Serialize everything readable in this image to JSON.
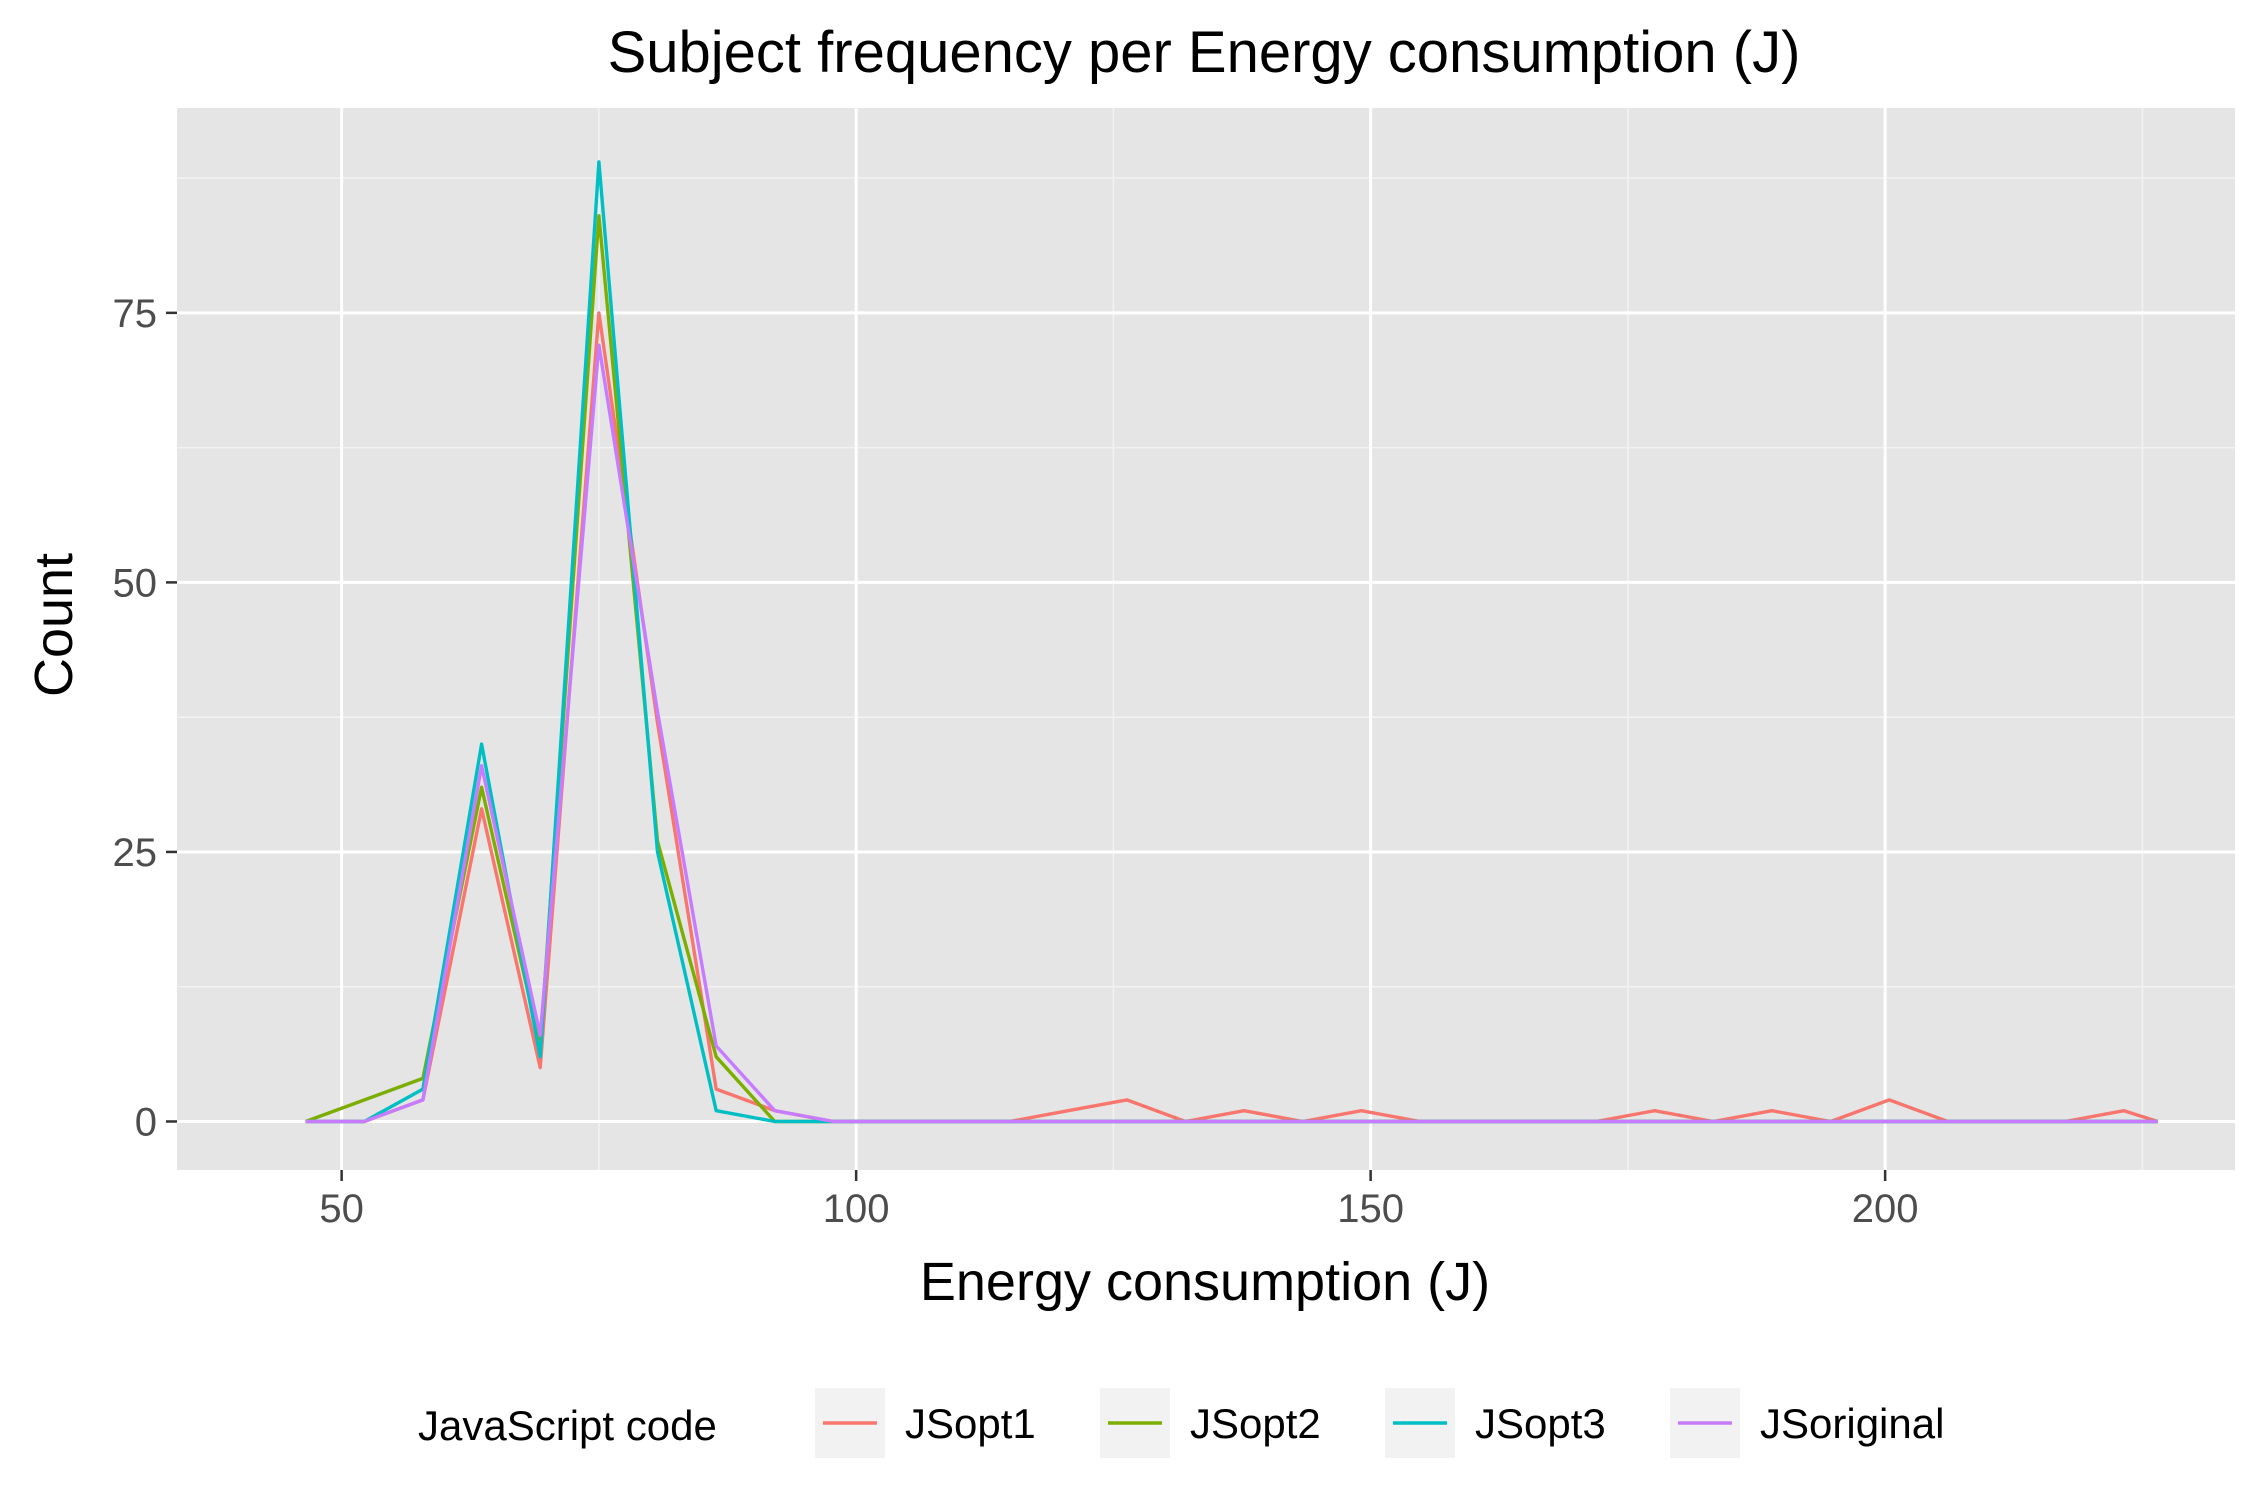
{
  "chart_data": {
    "type": "line",
    "title": "Subject frequency per  Energy consumption (J)",
    "xlabel": "Energy consumption (J)",
    "ylabel": "Count",
    "xlim": [
      34,
      234
    ],
    "ylim": [
      -4.5,
      94
    ],
    "x_ticks": [
      50,
      100,
      150,
      200
    ],
    "x_tick_labels": [
      "50",
      "100",
      "150",
      "200"
    ],
    "y_ticks": [
      0,
      25,
      50,
      75
    ],
    "y_tick_labels": [
      "0",
      "25",
      "50",
      "75"
    ],
    "grid": true,
    "legend": {
      "title": "JavaScript code",
      "position": "bottom"
    },
    "series": [
      {
        "name": "JSopt1",
        "color": "#F8766D",
        "points": [
          [
            46.5,
            0
          ],
          [
            52.2,
            0
          ],
          [
            57.9,
            2
          ],
          [
            63.6,
            29
          ],
          [
            69.3,
            5
          ],
          [
            75,
            75
          ],
          [
            80.7,
            37
          ],
          [
            86.4,
            3
          ],
          [
            92.1,
            1
          ],
          [
            97.8,
            0
          ],
          [
            103.5,
            0
          ],
          [
            109.2,
            0
          ],
          [
            114.9,
            0
          ],
          [
            120.6,
            1
          ],
          [
            126.3,
            2
          ],
          [
            132,
            0
          ],
          [
            137.7,
            1
          ],
          [
            143.4,
            0
          ],
          [
            149.1,
            1
          ],
          [
            154.8,
            0
          ],
          [
            160.5,
            0
          ],
          [
            166.2,
            0
          ],
          [
            171.9,
            0
          ],
          [
            177.6,
            1
          ],
          [
            183.3,
            0
          ],
          [
            189,
            1
          ],
          [
            194.7,
            0
          ],
          [
            200.4,
            2
          ],
          [
            206.1,
            0
          ],
          [
            211.8,
            0
          ],
          [
            217.5,
            0
          ],
          [
            223.2,
            1
          ],
          [
            226.5,
            0
          ]
        ]
      },
      {
        "name": "JSopt2",
        "color": "#7CAE00",
        "points": [
          [
            46.5,
            0
          ],
          [
            57.9,
            4
          ],
          [
            63.6,
            31
          ],
          [
            69.3,
            7
          ],
          [
            75,
            84
          ],
          [
            80.7,
            26
          ],
          [
            86.4,
            6
          ],
          [
            92.1,
            0
          ],
          [
            97.8,
            0
          ],
          [
            226.5,
            0
          ]
        ]
      },
      {
        "name": "JSopt3",
        "color": "#00BFC4",
        "points": [
          [
            46.5,
            0
          ],
          [
            52.2,
            0
          ],
          [
            57.9,
            3
          ],
          [
            63.6,
            35
          ],
          [
            69.3,
            6
          ],
          [
            75,
            89
          ],
          [
            80.7,
            25
          ],
          [
            86.4,
            1
          ],
          [
            92.1,
            0
          ],
          [
            97.8,
            0
          ],
          [
            226.5,
            0
          ]
        ]
      },
      {
        "name": "JSoriginal",
        "color": "#C77CFF",
        "points": [
          [
            46.5,
            0
          ],
          [
            52.2,
            0
          ],
          [
            57.9,
            2
          ],
          [
            63.6,
            33
          ],
          [
            69.3,
            8
          ],
          [
            75,
            72
          ],
          [
            80.7,
            38
          ],
          [
            86.4,
            7
          ],
          [
            92.1,
            1
          ],
          [
            97.8,
            0
          ],
          [
            226.5,
            0
          ]
        ]
      }
    ]
  }
}
